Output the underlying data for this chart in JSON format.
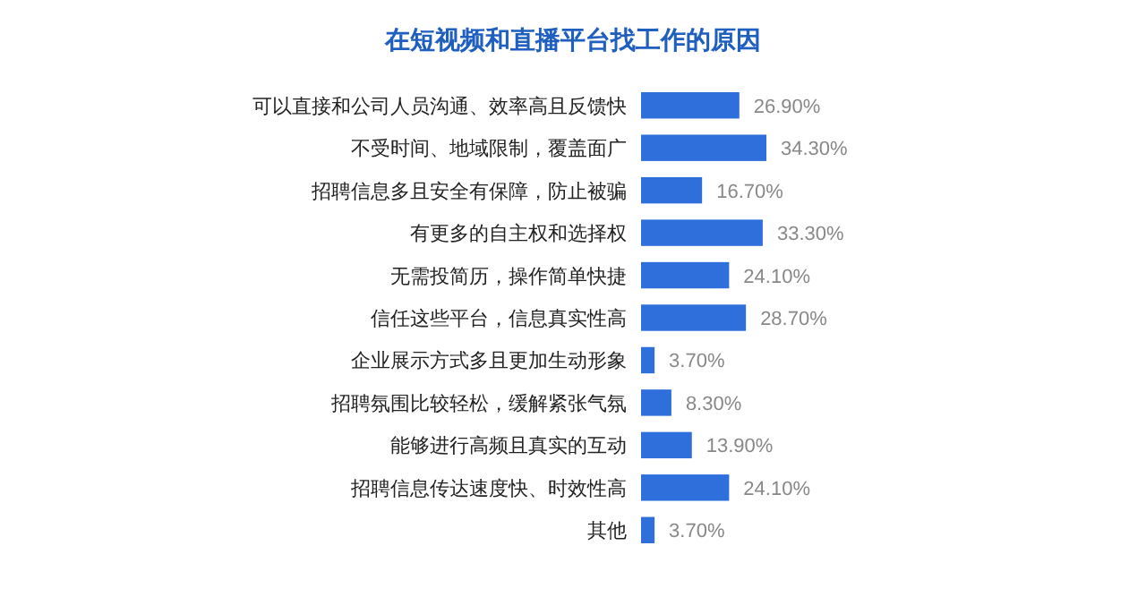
{
  "chart_data": {
    "type": "bar",
    "orientation": "horizontal",
    "title": "在短视频和直播平台找工作的原因",
    "categories": [
      "可以直接和公司人员沟通、效率高且反馈快",
      "不受时间、地域限制，覆盖面广",
      "招聘信息多且安全有保障，防止被骗",
      "有更多的自主权和选择权",
      "无需投简历，操作简单快捷",
      "信任这些平台，信息真实性高",
      "企业展示方式多且更加生动形象",
      "招聘氛围比较轻松，缓解紧张气氛",
      "能够进行高频且真实的互动",
      "招聘信息传达速度快、时效性高",
      "其他"
    ],
    "values": [
      26.9,
      34.3,
      16.7,
      33.3,
      24.1,
      28.7,
      3.7,
      8.3,
      13.9,
      24.1,
      3.7
    ],
    "value_labels": [
      "26.90%",
      "34.30%",
      "16.70%",
      "33.30%",
      "24.10%",
      "28.70%",
      "3.70%",
      "8.30%",
      "13.90%",
      "24.10%",
      "3.70%"
    ],
    "color": "#2f6fdc"
  }
}
